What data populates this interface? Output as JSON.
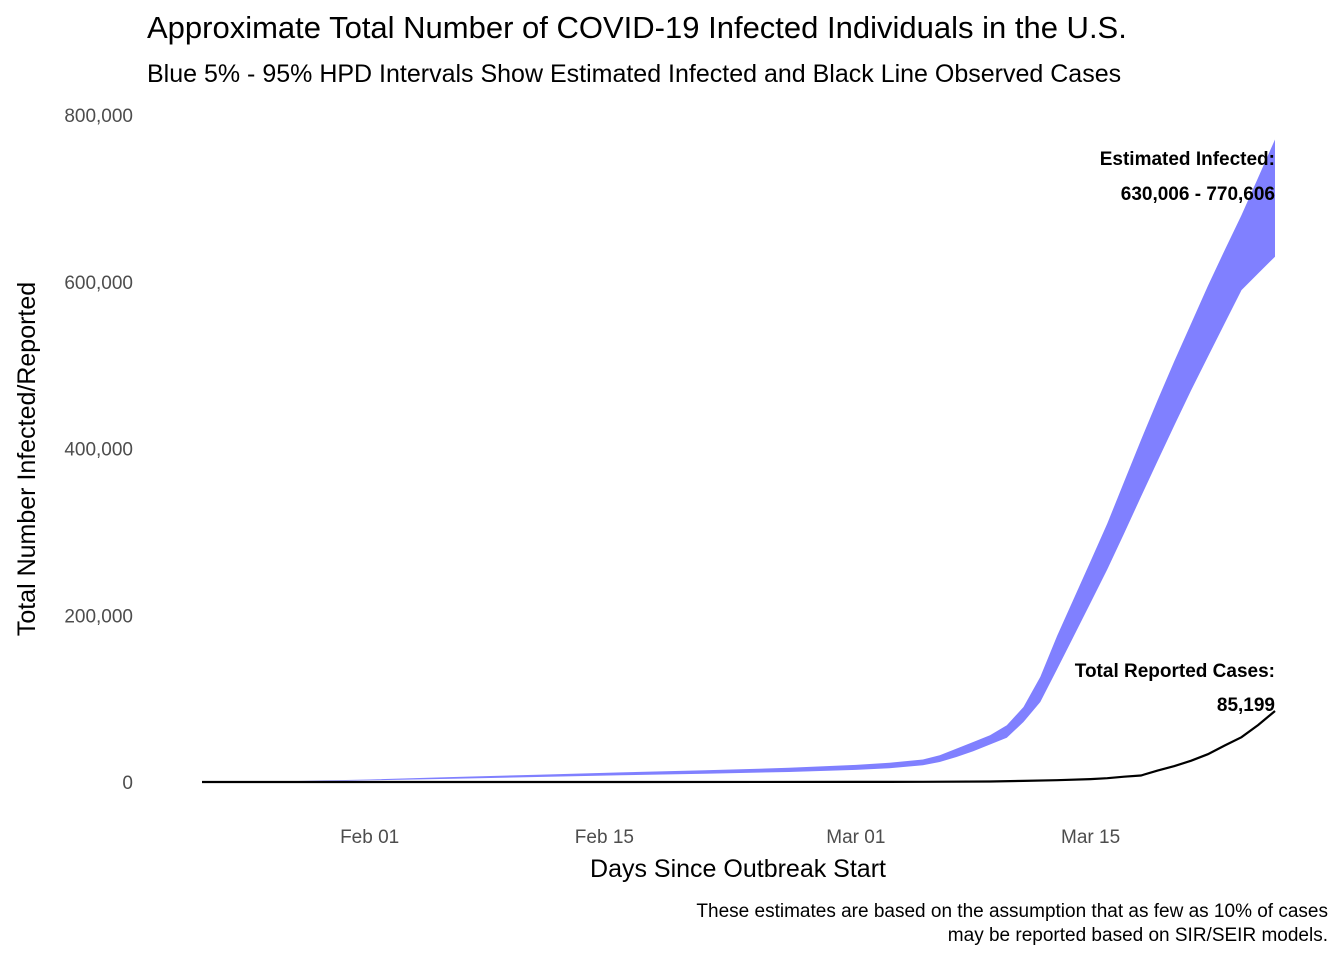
{
  "chart_data": {
    "type": "area",
    "title": "Approximate Total Number of COVID-19 Infected Individuals in the U.S.",
    "subtitle": "Blue 5% - 95% HPD Intervals Show Estimated Infected and Black Line Observed Cases",
    "xlabel": "Days Since Outbreak Start",
    "ylabel": "Total Number Infected/Reported",
    "caption": [
      "These estimates are based on the assumption that as few as 10% of cases",
      "may be reported based on SIR/SEIR models."
    ],
    "x_ticks": [
      "Feb 01",
      "Feb 15",
      "Mar 01",
      "Mar 15"
    ],
    "x_tick_dates": [
      "2020-02-01",
      "2020-02-15",
      "2020-03-01",
      "2020-03-15"
    ],
    "y_ticks": [
      "0",
      "200,000",
      "400,000",
      "600,000",
      "800,000"
    ],
    "y_tick_values": [
      0,
      200000,
      400000,
      600000,
      800000
    ],
    "xlim": [
      "2020-01-22",
      "2020-03-26"
    ],
    "ylim": [
      0,
      800000
    ],
    "grid": false,
    "colors": {
      "band": "#8080ff",
      "line": "#000000",
      "tick_text": "#4d4d4d"
    },
    "band": {
      "x": [
        "2020-01-22",
        "2020-01-27",
        "2020-02-01",
        "2020-02-06",
        "2020-02-11",
        "2020-02-16",
        "2020-02-21",
        "2020-02-26",
        "2020-03-01",
        "2020-03-03",
        "2020-03-05",
        "2020-03-06",
        "2020-03-07",
        "2020-03-08",
        "2020-03-09",
        "2020-03-10",
        "2020-03-11",
        "2020-03-12",
        "2020-03-13",
        "2020-03-14",
        "2020-03-15",
        "2020-03-16",
        "2020-03-17",
        "2020-03-18",
        "2020-03-19",
        "2020-03-20",
        "2020-03-21",
        "2020-03-22",
        "2020-03-23",
        "2020-03-24",
        "2020-03-25",
        "2020-03-26"
      ],
      "lower": [
        0,
        500,
        2000,
        4000,
        6000,
        8000,
        10000,
        12000,
        14500,
        16500,
        20000,
        24000,
        30000,
        37000,
        45000,
        53000,
        72000,
        96000,
        135000,
        175000,
        215000,
        255000,
        298000,
        342000,
        385000,
        428000,
        470000,
        510000,
        550000,
        590000,
        610000,
        630006
      ],
      "upper": [
        0,
        800,
        3000,
        6000,
        8800,
        11500,
        14000,
        17000,
        20500,
        23000,
        27000,
        32000,
        40000,
        48000,
        56000,
        68000,
        90000,
        126000,
        175000,
        220000,
        265000,
        310000,
        360000,
        410000,
        458000,
        505000,
        550000,
        595000,
        638000,
        680000,
        725000,
        770606
      ]
    },
    "series": [
      {
        "name": "Total Reported Cases",
        "x": [
          "2020-01-22",
          "2020-02-01",
          "2020-02-15",
          "2020-03-01",
          "2020-03-05",
          "2020-03-09",
          "2020-03-11",
          "2020-03-13",
          "2020-03-15",
          "2020-03-16",
          "2020-03-17",
          "2020-03-18",
          "2020-03-19",
          "2020-03-20",
          "2020-03-21",
          "2020-03-22",
          "2020-03-23",
          "2020-03-24",
          "2020-03-25",
          "2020-03-26"
        ],
        "values": [
          1,
          8,
          15,
          75,
          220,
          560,
          1300,
          2200,
          3500,
          4600,
          6400,
          7800,
          13700,
          19100,
          25500,
          33300,
          43800,
          53700,
          68400,
          85199
        ]
      }
    ],
    "annotations": {
      "estimated_label": "Estimated Infected:",
      "estimated_range": "630,006 - 770,606",
      "reported_label": "Total Reported Cases:",
      "reported_value": "85,199"
    }
  }
}
